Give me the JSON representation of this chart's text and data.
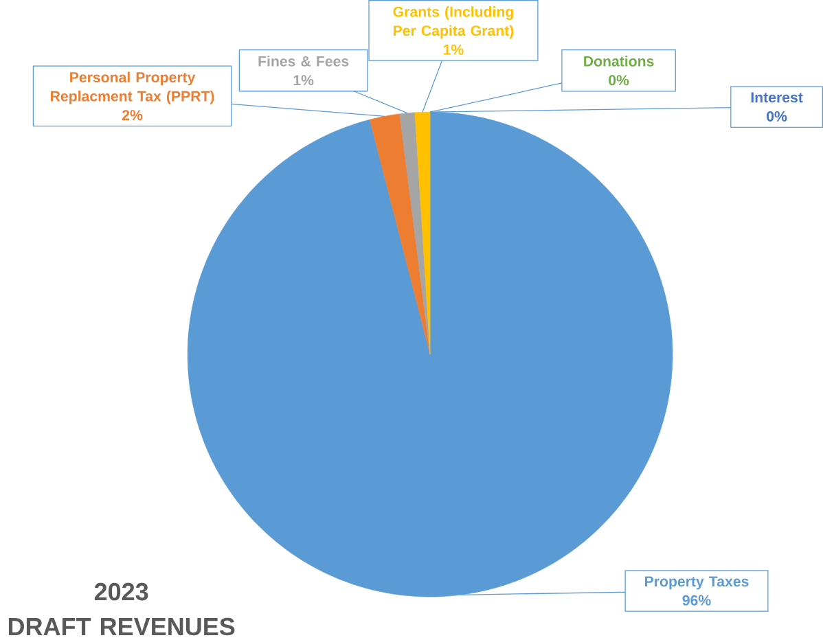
{
  "chart_data": {
    "type": "pie",
    "title": "2023",
    "subtitle": "DRAFT REVENUES",
    "categories": [
      "Property Taxes",
      "Personal Property Replacment Tax (PPRT)",
      "Fines & Fees",
      "Grants (Including Per Capita Grant)",
      "Donations",
      "Interest"
    ],
    "values": [
      96,
      2,
      1,
      1,
      0,
      0
    ],
    "value_labels": [
      "96%",
      "2%",
      "1%",
      "1%",
      "0%",
      "0%"
    ],
    "colors": [
      "#5b9bd5",
      "#ed7d31",
      "#a5a5a5",
      "#ffc000",
      "#70ad47",
      "#4472c4"
    ]
  }
}
